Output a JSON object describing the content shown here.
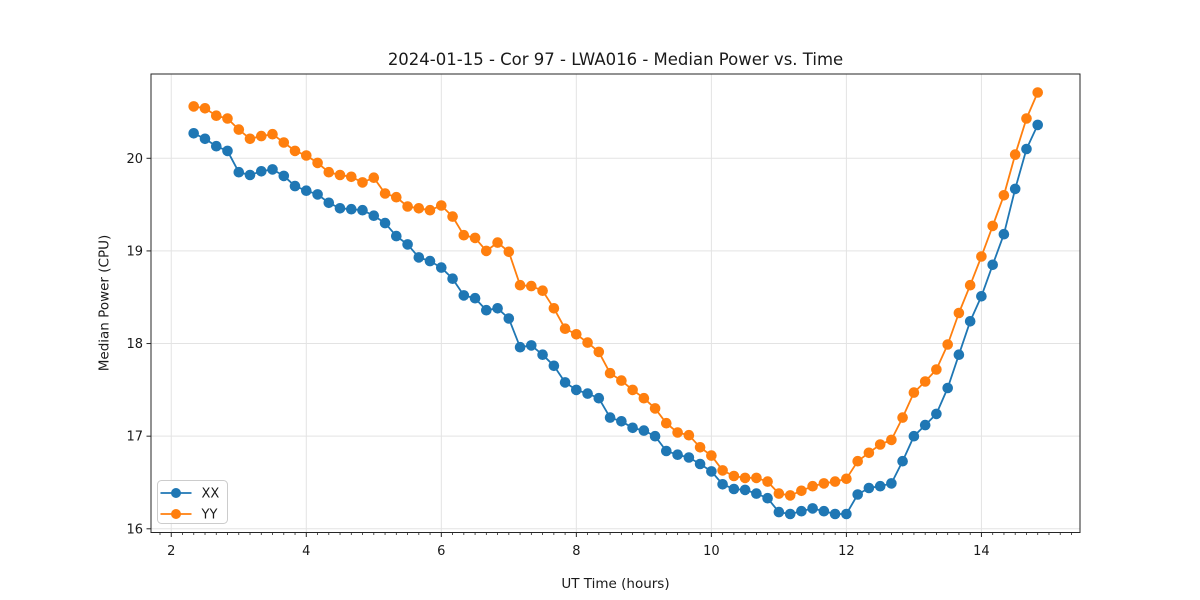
{
  "chart_data": {
    "type": "line",
    "title": "2024-01-15 - Cor 97 - LWA016 - Median Power vs. Time",
    "xlabel": "UT Time (hours)",
    "ylabel": "Median Power (CPU)",
    "xlim": [
      1.7,
      15.46
    ],
    "ylim": [
      15.96,
      20.91
    ],
    "grid": true,
    "legend_position": "lower left",
    "xticks": {
      "values": [
        2,
        4,
        6,
        8,
        10,
        12,
        14
      ],
      "labels": [
        "2",
        "4",
        "6",
        "8",
        "10",
        "12",
        "14"
      ]
    },
    "yticks": {
      "values": [
        16,
        17,
        18,
        19,
        20
      ],
      "labels": [
        "16",
        "17",
        "18",
        "19",
        "20"
      ]
    },
    "x_minor_step": 0.16667,
    "colors": {
      "background": "#ffffff",
      "grid": "#e3e3e3",
      "spine": "#262626",
      "text": "#1a1a1a"
    },
    "x": [
      2.333,
      2.5,
      2.667,
      2.833,
      3,
      3.167,
      3.333,
      3.5,
      3.667,
      3.833,
      4,
      4.167,
      4.333,
      4.5,
      4.667,
      4.833,
      5,
      5.167,
      5.333,
      5.5,
      5.667,
      5.833,
      6,
      6.167,
      6.333,
      6.5,
      6.667,
      6.833,
      7,
      7.167,
      7.333,
      7.5,
      7.667,
      7.833,
      8,
      8.167,
      8.333,
      8.5,
      8.667,
      8.833,
      9,
      9.167,
      9.333,
      9.5,
      9.667,
      9.833,
      10,
      10.167,
      10.333,
      10.5,
      10.667,
      10.833,
      11,
      11.167,
      11.333,
      11.5,
      11.667,
      11.833,
      12,
      12.167,
      12.333,
      12.5,
      12.667,
      12.833,
      13,
      13.167,
      13.333,
      13.5,
      13.667,
      13.833,
      14,
      14.167,
      14.333,
      14.5,
      14.667,
      14.833
    ],
    "series": [
      {
        "name": "XX",
        "color": "#1f77b4",
        "values": [
          20.27,
          20.21,
          20.13,
          20.08,
          19.85,
          19.82,
          19.86,
          19.88,
          19.81,
          19.7,
          19.65,
          19.61,
          19.52,
          19.46,
          19.45,
          19.44,
          19.38,
          19.3,
          19.16,
          19.07,
          18.93,
          18.89,
          18.82,
          18.7,
          18.52,
          18.49,
          18.36,
          18.38,
          18.27,
          17.96,
          17.98,
          17.88,
          17.76,
          17.58,
          17.5,
          17.46,
          17.41,
          17.2,
          17.16,
          17.09,
          17.06,
          17.0,
          16.84,
          16.8,
          16.77,
          16.7,
          16.62,
          16.48,
          16.43,
          16.42,
          16.38,
          16.33,
          16.18,
          16.16,
          16.19,
          16.22,
          16.19,
          16.16,
          16.16,
          16.37,
          16.44,
          16.46,
          16.49,
          16.73,
          17.0,
          17.12,
          17.24,
          17.52,
          17.88,
          18.24,
          18.51,
          18.85,
          19.18,
          19.67,
          20.1,
          20.36
        ]
      },
      {
        "name": "YY",
        "color": "#ff7f0e",
        "values": [
          20.56,
          20.54,
          20.46,
          20.43,
          20.31,
          20.21,
          20.24,
          20.26,
          20.17,
          20.08,
          20.03,
          19.95,
          19.85,
          19.82,
          19.8,
          19.74,
          19.79,
          19.62,
          19.58,
          19.48,
          19.46,
          19.44,
          19.49,
          19.37,
          19.17,
          19.14,
          19.0,
          19.09,
          18.99,
          18.63,
          18.62,
          18.57,
          18.38,
          18.16,
          18.1,
          18.01,
          17.91,
          17.68,
          17.6,
          17.5,
          17.41,
          17.3,
          17.14,
          17.04,
          17.01,
          16.88,
          16.79,
          16.63,
          16.57,
          16.55,
          16.55,
          16.51,
          16.38,
          16.36,
          16.41,
          16.46,
          16.49,
          16.51,
          16.54,
          16.73,
          16.82,
          16.91,
          16.96,
          17.2,
          17.47,
          17.59,
          17.72,
          17.99,
          18.33,
          18.63,
          18.94,
          19.27,
          19.6,
          20.04,
          20.43,
          20.71
        ]
      }
    ]
  }
}
